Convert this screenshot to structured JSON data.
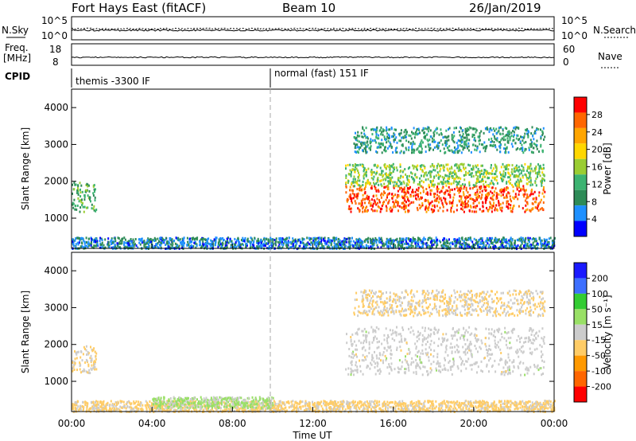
{
  "header": {
    "title": "Fort Hays East (fitACF)",
    "beam": "Beam 10",
    "date": "26/Jan/2019"
  },
  "top_panels": {
    "sky": {
      "left_label": "N.Sky",
      "right_label": "N.Search",
      "left_ticks": [
        "10^5",
        "10^0"
      ],
      "right_ticks": [
        "10^5",
        "10^0"
      ]
    },
    "freq": {
      "left_label_1": "Freq.",
      "left_label_2": "[MHz]",
      "left_ticks": [
        "18",
        "8"
      ],
      "right_label": "Nave",
      "right_ticks": [
        "60",
        "0"
      ]
    },
    "cpid": {
      "label": "CPID",
      "segments": [
        "themis -3300 IF",
        "normal (fast) 151 IF"
      ]
    }
  },
  "panels": {
    "power": {
      "ylabel": "Slant Range [km]",
      "colorbar_label": "Power [dB]",
      "colorbar_ticks": [
        "28",
        "24",
        "20",
        "16",
        "12",
        "8",
        "4"
      ]
    },
    "velocity": {
      "ylabel": "Slant Range [km]",
      "colorbar_label": "Velocity [m s⁻¹]",
      "colorbar_ticks": [
        "200",
        "100",
        "50",
        "15",
        "-15",
        "-50",
        "-100",
        "-200"
      ]
    }
  },
  "xaxis": {
    "label": "Time UT",
    "ticks": [
      "00:00",
      "04:00",
      "08:00",
      "12:00",
      "16:00",
      "20:00",
      "00:00"
    ]
  },
  "colors": {
    "power_scale": [
      "#ff0000",
      "#ff6600",
      "#ffa500",
      "#ffd700",
      "#9acd32",
      "#3cb371",
      "#2e8b57",
      "#1e90ff",
      "#0000ff"
    ],
    "velocity_scale": [
      "#1a1aff",
      "#3d6fff",
      "#33cc33",
      "#99e066",
      "#cccccc",
      "#ffcc66",
      "#ff9900",
      "#ff6600",
      "#ff0000"
    ]
  },
  "chart_data": [
    {
      "type": "heatmap",
      "title": "Power",
      "xlabel": "Time UT",
      "ylabel": "Slant Range [km]",
      "xlim": [
        "00:00",
        "24:00"
      ],
      "ylim": [
        180,
        4500
      ],
      "colorbar": {
        "label": "Power [dB]",
        "range": [
          0,
          30
        ],
        "ticks": [
          4,
          8,
          12,
          16,
          20,
          24,
          28
        ]
      },
      "features": [
        {
          "time": [
            0.0,
            1.2
          ],
          "range_km": [
            1200,
            2000
          ],
          "power_db": 11
        },
        {
          "time": [
            0.0,
            24.0
          ],
          "range_km": [
            200,
            500
          ],
          "power_db": 6
        },
        {
          "time": [
            13.6,
            23.5
          ],
          "range_km": [
            1200,
            1900
          ],
          "power_db": 26
        },
        {
          "time": [
            13.6,
            23.5
          ],
          "range_km": [
            1900,
            2500
          ],
          "power_db": 14
        },
        {
          "time": [
            14.0,
            23.5
          ],
          "range_km": [
            2800,
            3500
          ],
          "power_db": 9
        }
      ]
    },
    {
      "type": "heatmap",
      "title": "Velocity",
      "xlabel": "Time UT",
      "ylabel": "Slant Range [km]",
      "xlim": [
        "00:00",
        "24:00"
      ],
      "ylim": [
        180,
        4500
      ],
      "colorbar": {
        "label": "Velocity [m s⁻¹]",
        "range": [
          -250,
          250
        ],
        "ticks": [
          200,
          100,
          50,
          15,
          -15,
          -50,
          -100,
          -200
        ]
      },
      "features": [
        {
          "time": [
            0.0,
            1.2
          ],
          "range_km": [
            1200,
            2000
          ],
          "velocity": -30
        },
        {
          "time": [
            0.0,
            24.0
          ],
          "range_km": [
            200,
            500
          ],
          "velocity": -40
        },
        {
          "time": [
            4.0,
            10.0
          ],
          "range_km": [
            300,
            600
          ],
          "velocity": 40
        },
        {
          "time": [
            13.6,
            23.5
          ],
          "range_km": [
            1200,
            2500
          ],
          "velocity": 0
        },
        {
          "time": [
            14.0,
            23.5
          ],
          "range_km": [
            2800,
            3500
          ],
          "velocity": -30
        }
      ]
    }
  ]
}
